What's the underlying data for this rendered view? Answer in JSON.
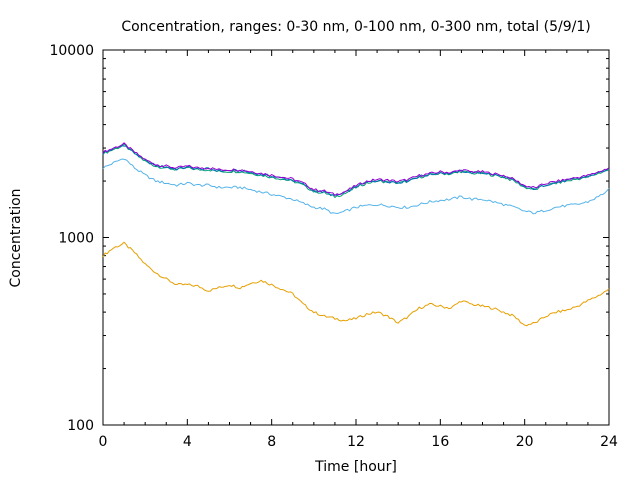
{
  "chart_data": {
    "type": "line",
    "title": "Concentration, ranges: 0-30 nm, 0-100 nm, 0-300 nm, total (5/9/1)",
    "xlabel": "Time [hour]",
    "ylabel": "Concentration",
    "xlim": [
      0,
      24
    ],
    "ylim": [
      100,
      10000
    ],
    "yscale": "log",
    "xticks": [
      0,
      4,
      8,
      12,
      16,
      20,
      24
    ],
    "yticks": [
      100,
      1000,
      10000
    ],
    "ytick_labels": [
      "100",
      "1000",
      "10000"
    ],
    "grid": false,
    "x": [
      0,
      0.5,
      1,
      1.5,
      2,
      2.5,
      3,
      3.5,
      4,
      4.5,
      5,
      5.5,
      6,
      6.5,
      7,
      7.5,
      8,
      8.5,
      9,
      9.5,
      10,
      10.5,
      11,
      11.5,
      12,
      12.5,
      13,
      13.5,
      14,
      14.5,
      15,
      15.5,
      16,
      16.5,
      17,
      17.5,
      18,
      18.5,
      19,
      19.5,
      20,
      20.5,
      21,
      21.5,
      22,
      22.5,
      23,
      23.5,
      24
    ],
    "series": [
      {
        "color": "#e69f00",
        "values": [
          800,
          880,
          930,
          830,
          720,
          650,
          600,
          560,
          560,
          550,
          520,
          540,
          560,
          540,
          570,
          590,
          560,
          530,
          500,
          440,
          400,
          380,
          370,
          360,
          370,
          390,
          400,
          380,
          350,
          380,
          420,
          440,
          430,
          420,
          460,
          440,
          430,
          420,
          400,
          380,
          340,
          350,
          380,
          400,
          410,
          430,
          460,
          490,
          530
        ]
      },
      {
        "color": "#56b4e9",
        "values": [
          2350,
          2500,
          2650,
          2350,
          2150,
          2000,
          1950,
          1900,
          1950,
          1900,
          1900,
          1850,
          1850,
          1850,
          1800,
          1750,
          1700,
          1650,
          1600,
          1520,
          1450,
          1420,
          1330,
          1380,
          1450,
          1480,
          1500,
          1480,
          1450,
          1450,
          1500,
          1550,
          1580,
          1600,
          1650,
          1600,
          1600,
          1550,
          1500,
          1450,
          1380,
          1350,
          1400,
          1450,
          1480,
          1500,
          1550,
          1650,
          1800
        ]
      },
      {
        "color": "#009e73",
        "values": [
          2800,
          2950,
          3100,
          2800,
          2550,
          2400,
          2350,
          2300,
          2350,
          2300,
          2300,
          2250,
          2250,
          2250,
          2200,
          2150,
          2100,
          2050,
          2000,
          1900,
          1760,
          1730,
          1650,
          1720,
          1850,
          1950,
          2000,
          1980,
          1950,
          2000,
          2100,
          2150,
          2200,
          2180,
          2250,
          2200,
          2200,
          2150,
          2100,
          2000,
          1850,
          1800,
          1900,
          1950,
          2000,
          2050,
          2100,
          2200,
          2300
        ]
      },
      {
        "color": "#0072b2",
        "values": [
          2820,
          2970,
          3120,
          2820,
          2570,
          2420,
          2370,
          2320,
          2370,
          2320,
          2320,
          2270,
          2270,
          2270,
          2220,
          2170,
          2120,
          2070,
          2020,
          1920,
          1775,
          1745,
          1665,
          1735,
          1865,
          1965,
          2015,
          1995,
          1965,
          2015,
          2115,
          2165,
          2215,
          2195,
          2265,
          2215,
          2215,
          2165,
          2115,
          2015,
          1865,
          1815,
          1915,
          1965,
          2015,
          2065,
          2115,
          2215,
          2315
        ]
      },
      {
        "color": "#9400d3",
        "values": [
          2850,
          3000,
          3150,
          2850,
          2600,
          2450,
          2400,
          2350,
          2400,
          2350,
          2350,
          2300,
          2300,
          2300,
          2250,
          2200,
          2150,
          2100,
          2050,
          1950,
          1800,
          1770,
          1690,
          1760,
          1890,
          1990,
          2040,
          2020,
          1990,
          2040,
          2140,
          2190,
          2240,
          2220,
          2290,
          2240,
          2240,
          2190,
          2140,
          2040,
          1890,
          1840,
          1940,
          1990,
          2040,
          2090,
          2140,
          2240,
          2340
        ]
      }
    ]
  }
}
